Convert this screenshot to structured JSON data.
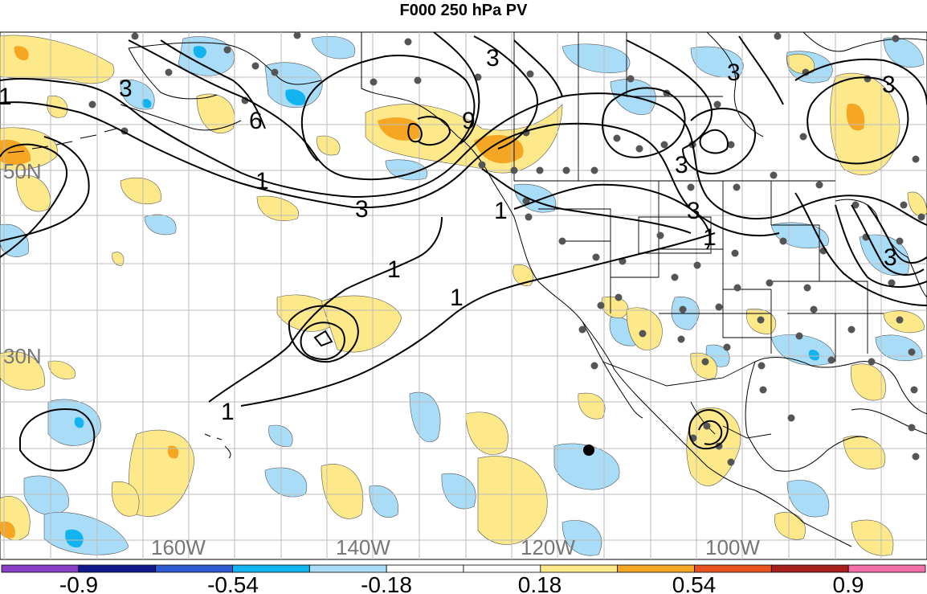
{
  "title": "F000 250 hPa PV",
  "lat_labels": [
    {
      "id": "lat-50n",
      "text": "50N"
    },
    {
      "id": "lat-30n",
      "text": "30N"
    }
  ],
  "lon_labels": [
    {
      "id": "lon-160w",
      "text": "160W"
    },
    {
      "id": "lon-140w",
      "text": "140W"
    },
    {
      "id": "lon-120w",
      "text": "120W"
    },
    {
      "id": "lon-100w",
      "text": "100W"
    }
  ],
  "contour_labels": [
    "1",
    "3",
    "6",
    "9"
  ],
  "colorbar": {
    "colors": [
      "#8a3fc8",
      "#101a8c",
      "#2f5bd2",
      "#12b4ef",
      "#a8dcf7",
      "#ffffff",
      "#ffffff",
      "#fde98a",
      "#f5a623",
      "#e8521e",
      "#a8201e",
      "#f36fa8"
    ],
    "labels": [
      "-0.9",
      "-0.54",
      "-0.18",
      "0.18",
      "0.54",
      "0.9"
    ]
  },
  "map_colors": {
    "light_blue": "#a8dcf7",
    "mid_blue": "#12b4ef",
    "light_yellow": "#fde98a",
    "orange": "#f5a623",
    "grid": "#bbbbbb",
    "station": "#555555"
  }
}
